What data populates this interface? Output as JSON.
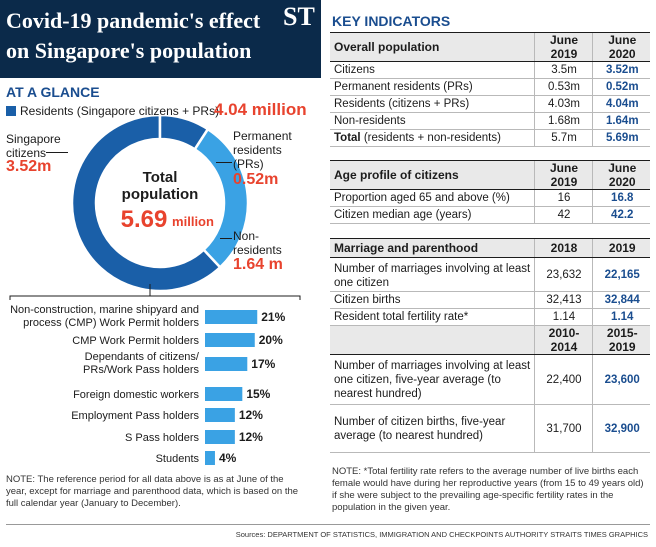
{
  "header": {
    "title": "Covid-19 pandemic's effect on Singapore's population",
    "logo": "ST"
  },
  "at_a_glance": {
    "heading": "AT A GLANCE",
    "legend_label": "Residents (Singapore citizens + PRs)",
    "legend_value": "4.04 million",
    "donut": {
      "center_line1": "Total",
      "center_line2": "population",
      "center_value": "5.69",
      "center_unit": "million",
      "citizens_label_1": "Singapore",
      "citizens_label_2": "citizens",
      "citizens_value": "3.52m",
      "prs_label_1": "Permanent",
      "prs_label_2": "residents",
      "prs_label_3": "(PRs)",
      "prs_value": "0.52m",
      "nonres_label_1": "Non-",
      "nonres_label_2": "residents",
      "nonres_value": "1.64 m"
    },
    "colors": {
      "citizens": "#1a5fa8",
      "prs": "#1a5fa8",
      "nonres": "#3aa2e4",
      "accent": "#e8432e",
      "navy": "#0b2a4a"
    }
  },
  "chart_data": [
    {
      "type": "pie",
      "title": "Total population 5.69 million",
      "categories": [
        "Singapore citizens",
        "Permanent residents (PRs)",
        "Non-residents"
      ],
      "values": [
        3.52,
        0.52,
        1.64
      ],
      "unit": "million"
    },
    {
      "type": "bar",
      "orientation": "horizontal",
      "categories": [
        "Non-construction, marine shipyard and process (CMP) Work Permit holders",
        "CMP Work Permit holders",
        "Dependants of citizens/ PRs/Work Pass holders",
        "Foreign domestic workers",
        "Employment Pass holders",
        "S Pass holders",
        "Students"
      ],
      "values": [
        21,
        20,
        17,
        15,
        12,
        12,
        4
      ],
      "value_labels": [
        "21%",
        "20%",
        "17%",
        "15%",
        "12%",
        "12%",
        "4%"
      ],
      "bar_color": "#3aa2e4"
    }
  ],
  "bar_labels": [
    [
      "Non-construction, marine shipyard and",
      "process (CMP) Work Permit holders"
    ],
    [
      "CMP Work Permit holders"
    ],
    [
      "Dependants of citizens/",
      "PRs/Work Pass holders"
    ],
    [
      "Foreign domestic workers"
    ],
    [
      "Employment Pass holders"
    ],
    [
      "S Pass holders"
    ],
    [
      "Students"
    ]
  ],
  "left_note": "NOTE: The reference period for all data above is as at June of the year, except for marriage and parenthood data, which is based on the full calendar year (January to December).",
  "key_indicators": {
    "heading": "KEY INDICATORS",
    "overall": {
      "header": [
        "Overall population",
        "June 2019",
        "June 2020"
      ],
      "rows": [
        [
          "Citizens",
          "3.5m",
          "3.52m"
        ],
        [
          "Permanent residents (PRs)",
          "0.53m",
          "0.52m"
        ],
        [
          "Residents (citizens + PRs)",
          "4.03m",
          "4.04m"
        ],
        [
          "Non-residents",
          "1.68m",
          "1.64m"
        ]
      ],
      "total_bold": "Total",
      "total_rest": " (residents + non-residents)",
      "total_values": [
        "5.7m",
        "5.69m"
      ]
    },
    "age": {
      "header": [
        "Age profile of citizens",
        "June 2019",
        "June 2020"
      ],
      "rows": [
        [
          "Proportion aged 65 and above (%)",
          "16",
          "16.8"
        ],
        [
          "Citizen median age (years)",
          "42",
          "42.2"
        ]
      ]
    },
    "marriage": {
      "header": [
        "Marriage and parenthood",
        "2018",
        "2019"
      ],
      "rows": [
        [
          "Number of marriages involving at least one citizen",
          "23,632",
          "22,165"
        ],
        [
          "Citizen births",
          "32,413",
          "32,844"
        ],
        [
          "Resident total fertility rate*",
          "1.14",
          "1.14"
        ]
      ],
      "header2": [
        "",
        "2010-2014",
        "2015-2019"
      ],
      "rows2": [
        [
          "Number of marriages involving at least one citizen, five-year average (to nearest hundred)",
          "22,400",
          "23,600"
        ],
        [
          "Number of citizen births, five-year average (to nearest hundred)",
          "31,700",
          "32,900"
        ]
      ]
    },
    "note": "NOTE: *Total fertility rate refers to the average number of live births each female would have during her reproductive years (from 15 to 49 years old) if she were subject to the prevailing age-specific fertility rates in the population in the given year."
  },
  "sources": "Sources: DEPARTMENT OF STATISTICS, IMMIGRATION AND CHECKPOINTS AUTHORITY   STRAITS TIMES GRAPHICS"
}
